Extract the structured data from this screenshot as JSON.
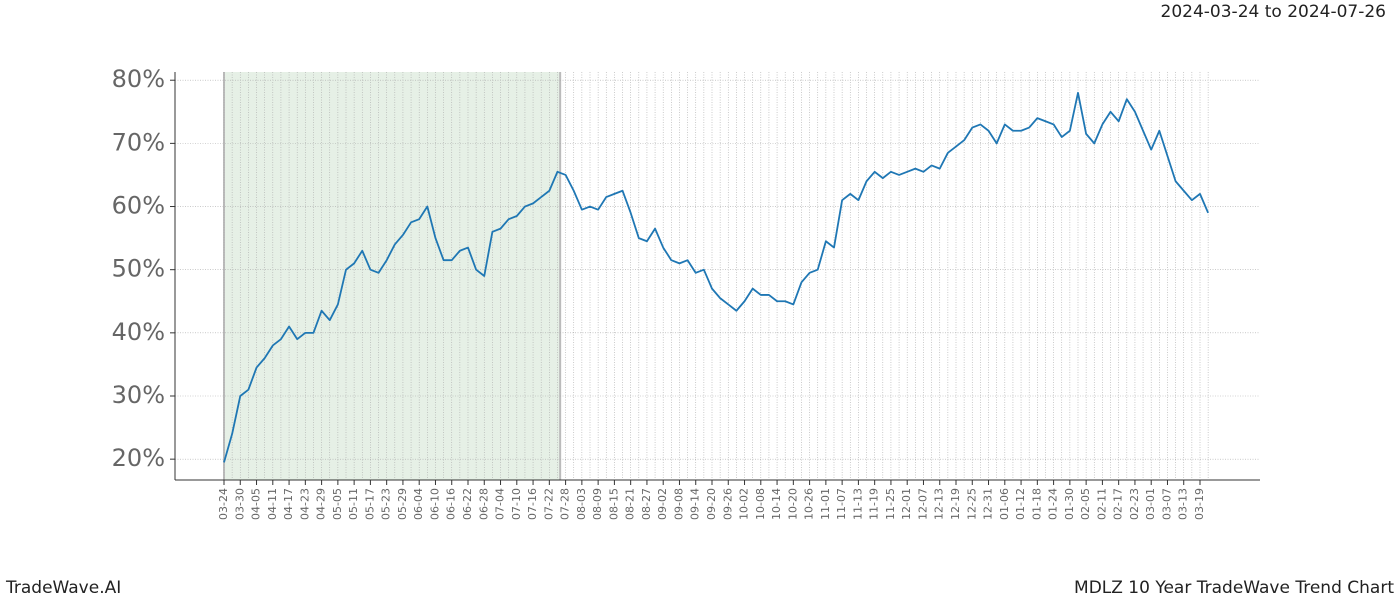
{
  "chart_data": {
    "type": "line",
    "header": "2024-03-24 to 2024-07-26",
    "footer_left": "TradeWave.AI",
    "footer_right": "MDLZ 10 Year TradeWave Trend Chart",
    "categories": [
      "03-24",
      null,
      "03-30",
      null,
      "04-05",
      null,
      "04-11",
      null,
      "04-17",
      null,
      "04-23",
      null,
      "04-29",
      null,
      "05-05",
      null,
      "05-11",
      null,
      "05-17",
      null,
      "05-23",
      null,
      "05-29",
      null,
      "06-04",
      null,
      "06-10",
      null,
      "06-16",
      null,
      "06-22",
      null,
      "06-28",
      null,
      "07-04",
      null,
      "07-10",
      null,
      "07-16",
      null,
      "07-22",
      null,
      "07-28",
      null,
      "08-03",
      null,
      "08-09",
      null,
      "08-15",
      null,
      "08-21",
      null,
      "08-27",
      null,
      "09-02",
      null,
      "09-08",
      null,
      "09-14",
      null,
      "09-20",
      null,
      "09-26",
      null,
      "10-02",
      null,
      "10-08",
      null,
      "10-14",
      null,
      "10-20",
      null,
      "10-26",
      null,
      "11-01",
      null,
      "11-07",
      null,
      "11-13",
      null,
      "11-19",
      null,
      "11-25",
      null,
      "12-01",
      null,
      "12-07",
      null,
      "12-13",
      null,
      "12-19",
      null,
      "12-25",
      null,
      "12-31",
      null,
      "01-06",
      null,
      "01-12",
      null,
      "01-18",
      null,
      "01-24",
      null,
      "01-30",
      null,
      "02-05",
      null,
      "02-11",
      null,
      "02-17",
      null,
      "02-23",
      null,
      "03-01",
      null,
      "03-07",
      null,
      "03-13",
      null,
      "03-19",
      null
    ],
    "series": [
      {
        "color": "#1f77b4",
        "values": [
          19.5,
          24,
          30,
          31,
          34.5,
          36,
          38,
          39,
          41,
          39,
          40,
          40,
          43.5,
          42,
          44.5,
          50,
          51,
          53,
          50,
          49.5,
          51.5,
          54,
          55.5,
          57.5,
          58,
          60,
          55,
          51.5,
          51.5,
          53,
          53.5,
          50,
          49,
          56,
          56.5,
          58,
          58.5,
          60,
          60.5,
          61.5,
          62.5,
          65.5,
          65,
          62.5,
          59.5,
          60,
          59.5,
          61.5,
          62,
          62.5,
          59,
          55,
          54.5,
          56.5,
          53.5,
          51.5,
          51,
          51.5,
          49.5,
          50,
          47,
          45.5,
          44.5,
          43.5,
          45,
          47,
          46,
          46,
          45,
          45,
          44.5,
          48,
          49.5,
          50,
          54.5,
          53.5,
          61,
          62,
          61,
          64,
          65.5,
          64.5,
          65.5,
          65,
          65.5,
          66,
          65.5,
          66.5,
          66,
          68.5,
          69.5,
          70.5,
          72.5,
          73,
          72,
          70,
          73,
          72,
          72,
          72.5,
          74,
          73.5,
          73,
          71,
          72,
          78,
          71.5,
          70,
          73,
          75,
          73.5,
          77,
          75,
          72,
          69,
          72,
          68,
          64,
          62.5,
          61,
          62,
          59
        ]
      }
    ],
    "highlight": {
      "from": 0,
      "to": 41.33,
      "color": "#e6f0e6"
    },
    "ylim": [
      16.7,
      81.3
    ],
    "yticks": [
      {
        "value": 20,
        "label": "20%"
      },
      {
        "value": 30,
        "label": "30%"
      },
      {
        "value": 40,
        "label": "40%"
      },
      {
        "value": 50,
        "label": "50%"
      },
      {
        "value": 60,
        "label": "60%"
      },
      {
        "value": 70,
        "label": "70%"
      },
      {
        "value": 80,
        "label": "80%"
      }
    ],
    "grid": true
  }
}
